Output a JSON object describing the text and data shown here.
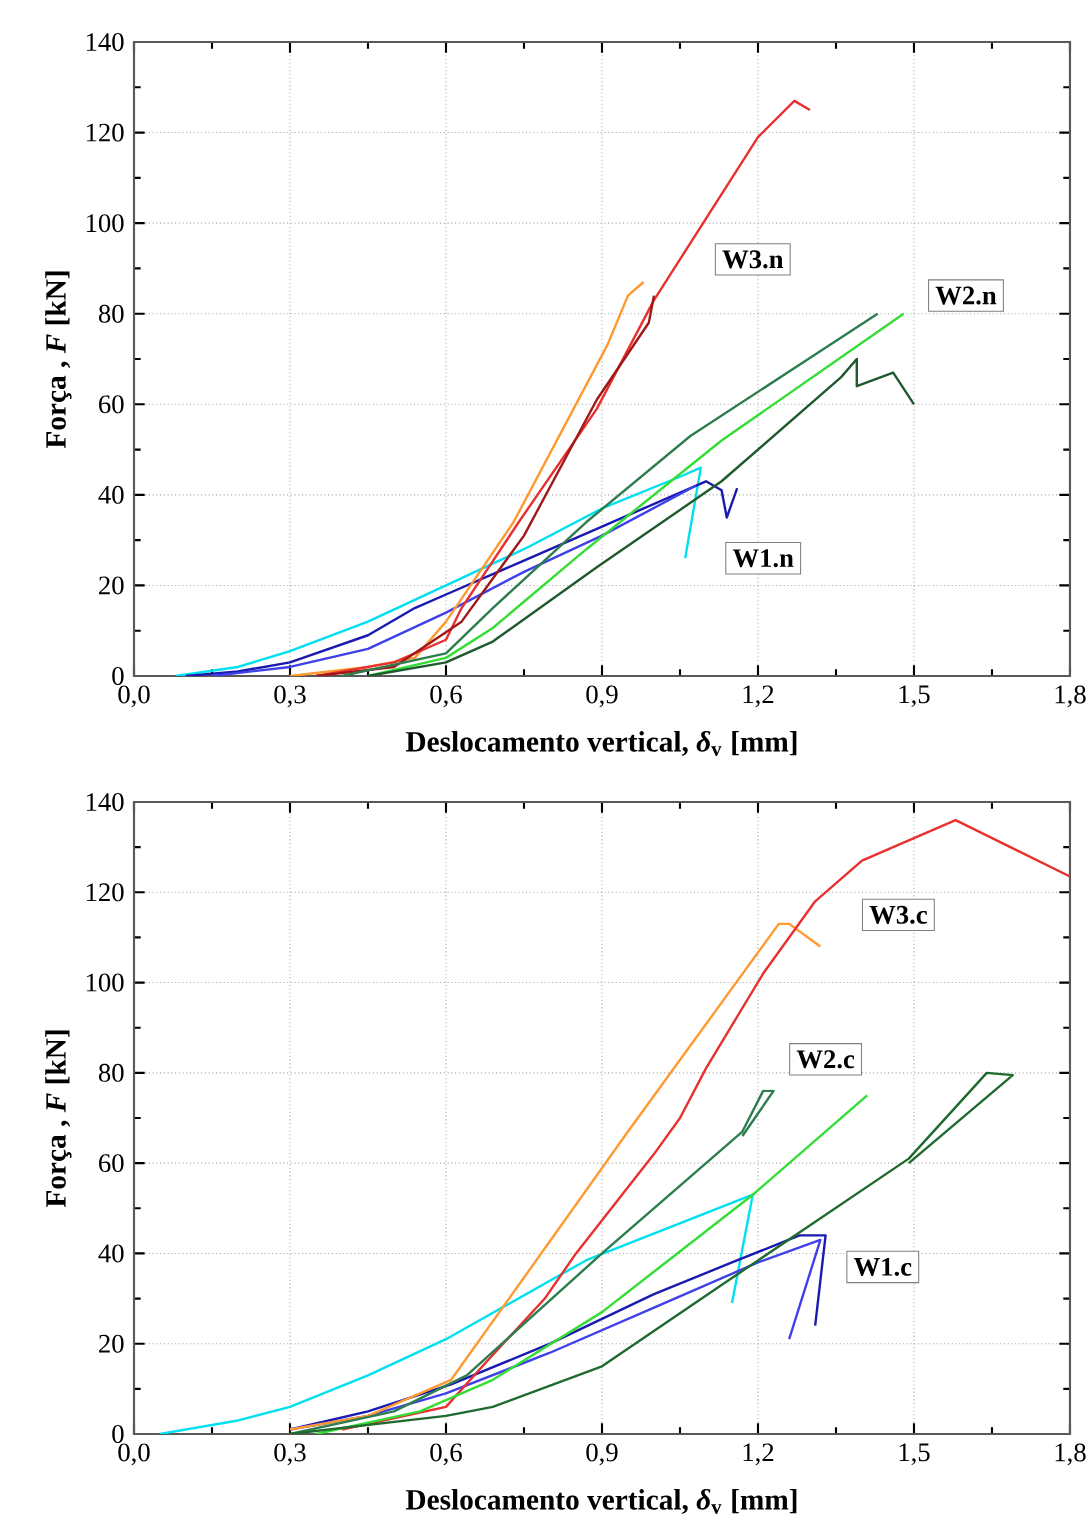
{
  "chart_data": [
    {
      "type": "line",
      "xlabel": "Deslocamento vertical, *δ*$_{v}$ [mm]",
      "ylabel": "Força , *F* [kN]",
      "xlim": [
        0,
        1.8
      ],
      "ylim": [
        0,
        140
      ],
      "xticks": [
        {
          "value": 0,
          "label": "0,0"
        },
        {
          "value": 0.3,
          "label": "0,3"
        },
        {
          "value": 0.6,
          "label": "0,6"
        },
        {
          "value": 0.9,
          "label": "0,9"
        },
        {
          "value": 1.2,
          "label": "1,2"
        },
        {
          "value": 1.5,
          "label": "1,5"
        },
        {
          "value": 1.8,
          "label": "1,8"
        }
      ],
      "yticks": [
        0,
        20,
        40,
        60,
        80,
        100,
        120,
        140
      ],
      "grid": true,
      "marker": "none",
      "line_style": "solid",
      "annotations": [
        {
          "text": "W3.n",
          "x": 1.19,
          "y": 92
        },
        {
          "text": "W2.n",
          "x": 1.6,
          "y": 84
        },
        {
          "text": "W1.n",
          "x": 1.21,
          "y": 26
        }
      ],
      "series": [
        {
          "color": "#00e0f0",
          "x": [
            0.08,
            0.2,
            0.3,
            0.45,
            0.6,
            0.75,
            0.9,
            1.05,
            1.09,
            1.06
          ],
          "values": [
            0,
            2,
            5.5,
            12,
            20,
            28,
            37,
            44,
            46,
            26
          ]
        },
        {
          "color": "#1a1ab0",
          "x": [
            0.1,
            0.2,
            0.3,
            0.45,
            0.54,
            0.6,
            0.74,
            0.9,
            1.1,
            1.13,
            1.14,
            1.16
          ],
          "values": [
            0,
            1,
            3,
            9,
            15,
            18,
            25,
            33,
            43,
            41,
            35,
            41.5
          ]
        },
        {
          "color": "#4040e8",
          "x": [
            0.15,
            0.3,
            0.45,
            0.6,
            0.75,
            0.9,
            1.08
          ],
          "values": [
            0,
            2,
            6,
            14,
            23,
            31,
            42
          ]
        },
        {
          "color": "#ff9a30",
          "x": [
            0.3,
            0.45,
            0.54,
            0.6,
            0.73,
            0.91,
            0.95,
            0.98
          ],
          "values": [
            0,
            2,
            4,
            12,
            34,
            73,
            84,
            87
          ]
        },
        {
          "color": "#e83030",
          "x": [
            0.35,
            0.5,
            0.6,
            0.63,
            0.74,
            0.89,
            1.0,
            1.2,
            1.27,
            1.3
          ],
          "values": [
            0,
            3,
            8,
            15,
            34,
            59,
            83,
            119,
            127,
            125
          ]
        },
        {
          "color": "#a01818",
          "x": [
            0.35,
            0.5,
            0.63,
            0.75,
            0.89,
            0.99,
            1.0
          ],
          "values": [
            0,
            2,
            12,
            31,
            61,
            78,
            84
          ]
        },
        {
          "color": "#2e7d4f",
          "x": [
            0.4,
            0.6,
            0.69,
            0.87,
            1.07,
            1.31,
            1.43
          ],
          "values": [
            0,
            5,
            15,
            34,
            53,
            71,
            80
          ]
        },
        {
          "color": "#33dd33",
          "x": [
            0.45,
            0.6,
            0.69,
            0.87,
            1.13,
            1.48
          ],
          "values": [
            0,
            4,
            10.6,
            28,
            52,
            80
          ]
        },
        {
          "color": "#1f5a2f",
          "x": [
            0.45,
            0.6,
            0.69,
            0.89,
            1.13,
            1.36,
            1.39,
            1.39,
            1.46,
            1.5
          ],
          "values": [
            0,
            3,
            7.6,
            24,
            43,
            66,
            70,
            64,
            67,
            60
          ]
        }
      ]
    },
    {
      "type": "line",
      "xlabel": "Deslocamento vertical, *δ*$_{v}$ [mm]",
      "ylabel": "Força , *F* [kN]",
      "xlim": [
        0,
        1.8
      ],
      "ylim": [
        0,
        140
      ],
      "xticks": [
        {
          "value": 0,
          "label": "0,0"
        },
        {
          "value": 0.3,
          "label": "0,3"
        },
        {
          "value": 0.6,
          "label": "0,6"
        },
        {
          "value": 0.9,
          "label": "0,9"
        },
        {
          "value": 1.2,
          "label": "1,2"
        },
        {
          "value": 1.5,
          "label": "1,5"
        },
        {
          "value": 1.8,
          "label": "1,8"
        }
      ],
      "yticks": [
        0,
        20,
        40,
        60,
        80,
        100,
        120,
        140
      ],
      "grid": true,
      "marker": "none",
      "line_style": "solid",
      "annotations": [
        {
          "text": "W3.c",
          "x": 1.47,
          "y": 115
        },
        {
          "text": "W2.c",
          "x": 1.33,
          "y": 83
        },
        {
          "text": "W1.c",
          "x": 1.44,
          "y": 37
        }
      ],
      "series": [
        {
          "color": "#00e0f0",
          "x": [
            0.05,
            0.2,
            0.3,
            0.45,
            0.6,
            0.87,
            1.19,
            1.15
          ],
          "values": [
            0,
            3,
            6,
            13,
            21,
            38.5,
            53,
            29
          ]
        },
        {
          "color": "#1a1ab0",
          "x": [
            0.3,
            0.45,
            0.61,
            0.8,
            1.0,
            1.15,
            1.28,
            1.33,
            1.31
          ],
          "values": [
            1,
            5,
            11,
            20,
            31,
            38,
            44,
            44,
            24
          ]
        },
        {
          "color": "#4040e8",
          "x": [
            0.3,
            0.45,
            0.6,
            0.8,
            1.0,
            1.2,
            1.32,
            1.26
          ],
          "values": [
            1,
            4,
            9,
            18,
            28,
            38,
            43,
            21
          ]
        },
        {
          "color": "#ff9a30",
          "x": [
            0.3,
            0.45,
            0.61,
            0.95,
            1.24,
            1.26,
            1.32
          ],
          "values": [
            1,
            4,
            12,
            67,
            113,
            113,
            108
          ]
        },
        {
          "color": "#e83030",
          "x": [
            0.4,
            0.6,
            0.67,
            0.79,
            0.85,
            1.0,
            1.05,
            1.1,
            1.21,
            1.31,
            1.4,
            1.58,
            1.8
          ],
          "values": [
            1,
            6,
            15,
            30,
            40,
            62,
            70,
            81,
            102,
            118,
            127,
            136,
            123.5
          ]
        },
        {
          "color": "#2e7d4f",
          "x": [
            0.3,
            0.5,
            0.64,
            0.9,
            1.17,
            1.21,
            1.23,
            1.17
          ],
          "values": [
            0,
            5,
            13,
            40,
            67,
            76,
            76,
            66
          ]
        },
        {
          "color": "#33dd33",
          "x": [
            0.35,
            0.55,
            0.69,
            0.9,
            1.19,
            1.41
          ],
          "values": [
            0,
            5,
            12,
            27,
            53,
            75
          ]
        },
        {
          "color": "#1f6a2f",
          "x": [
            0.3,
            0.6,
            0.69,
            0.9,
            1.13,
            1.49,
            1.64,
            1.69,
            1.49
          ],
          "values": [
            0,
            4,
            6,
            15,
            33,
            61,
            80,
            79.5,
            60
          ]
        }
      ]
    }
  ]
}
